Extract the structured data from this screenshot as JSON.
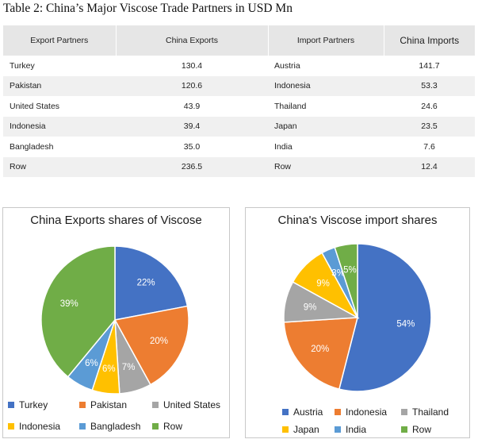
{
  "table": {
    "title": "Table 2: China’s Major Viscose Trade Partners in USD Mn",
    "headers": [
      "Export Partners",
      "China Exports",
      "Import Partners",
      "China Imports"
    ],
    "rows": [
      [
        "Turkey",
        "130.4",
        "Austria",
        "141.7"
      ],
      [
        "Pakistan",
        "120.6",
        "Indonesia",
        "53.3"
      ],
      [
        "United States",
        "43.9",
        "Thailand",
        "24.6"
      ],
      [
        "Indonesia",
        "39.4",
        "Japan",
        "23.5"
      ],
      [
        "Bangladesh",
        "35.0",
        "India",
        "7.6"
      ],
      [
        "Row",
        "236.5",
        "Row",
        "12.4"
      ]
    ]
  },
  "chart_data": [
    {
      "type": "pie",
      "title": "China Exports shares of Viscose",
      "categories": [
        "Turkey",
        "Pakistan",
        "United States",
        "Indonesia",
        "Bangladesh",
        "Row"
      ],
      "values": [
        22,
        20,
        7,
        6,
        6,
        39
      ],
      "labels": [
        "22%",
        "20%",
        "7%",
        "6%",
        "6%",
        "39%"
      ],
      "colors": [
        "#4472c4",
        "#ed7d31",
        "#a5a5a5",
        "#ffc000",
        "#5b9bd5",
        "#70ad47"
      ],
      "legend_position": "bottom"
    },
    {
      "type": "pie",
      "title": "China's Viscose import shares",
      "categories": [
        "Austria",
        "Indonesia",
        "Thailand",
        "Japan",
        "India",
        "Row"
      ],
      "values": [
        54,
        20,
        9,
        9,
        3,
        5
      ],
      "labels": [
        "54%",
        "20%",
        "9%",
        "9%",
        "3%",
        "5%"
      ],
      "colors": [
        "#4472c4",
        "#ed7d31",
        "#a5a5a5",
        "#ffc000",
        "#5b9bd5",
        "#70ad47"
      ],
      "legend_position": "bottom"
    }
  ]
}
